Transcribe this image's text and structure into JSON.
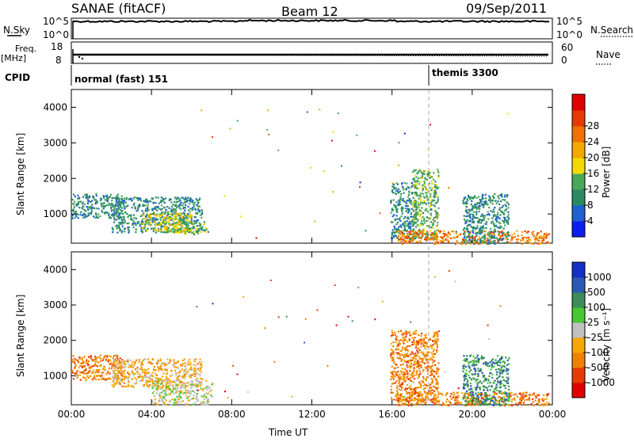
{
  "header": {
    "radar": "SANAE (fitACF)",
    "beam": "Beam 12",
    "date": "09/Sep/2011"
  },
  "labels": {
    "nsky": "N.Sky",
    "nsearch": "N.Search",
    "freq": "Freq.",
    "freq_unit": "[MHz]",
    "nave": "Nave",
    "cpid": "CPID",
    "nsky_top": "10^5",
    "nsky_bot": "10^0",
    "freq_top": "18",
    "freq_bot": "8",
    "nave_top": "60",
    "nave_bot": "0",
    "nsearch_top": "10^5",
    "nsearch_bot": "10^0"
  },
  "cpid_segments": [
    {
      "label": "normal (fast) 151",
      "start_hour": 0.0
    },
    {
      "label": "themis 3300",
      "start_hour": 18.0
    }
  ],
  "colors": {
    "power": [
      "#0a1ef0",
      "#1e5fd2",
      "#2a8a64",
      "#48a858",
      "#f5d800",
      "#f5a800",
      "#f07000",
      "#e83a00",
      "#e00000"
    ],
    "velocity": [
      "#1530c8",
      "#2a5ab4",
      "#3c8c5a",
      "#46c832",
      "#c0c0c0",
      "#f5a800",
      "#f08000",
      "#e83a00",
      "#e00000"
    ]
  },
  "chart_data": [
    {
      "type": "heatmap",
      "panel": "power",
      "ylabel": "Slant Range [km]",
      "colorbar_label": "Power [dB]",
      "xlim": [
        0,
        24
      ],
      "ylim": [
        180,
        4500
      ],
      "yticks": [
        "1000",
        "2000",
        "3000",
        "4000"
      ],
      "colorbar_ticks": [
        "4",
        "8",
        "12",
        "16",
        "20",
        "24",
        "28"
      ],
      "regions": [
        {
          "x0": 0.0,
          "x1": 2.5,
          "y0": 900,
          "y1": 1600,
          "level": 2
        },
        {
          "x0": 2.0,
          "x1": 6.5,
          "y0": 500,
          "y1": 1500,
          "level": 2
        },
        {
          "x0": 3.5,
          "x1": 6.0,
          "y0": 500,
          "y1": 1050,
          "level": 4
        },
        {
          "x0": 5.0,
          "x1": 6.8,
          "y0": 450,
          "y1": 800,
          "level": 3
        },
        {
          "x0": 15.9,
          "x1": 17.2,
          "y0": 300,
          "y1": 1900,
          "level": 2
        },
        {
          "x0": 17.0,
          "x1": 18.3,
          "y0": 300,
          "y1": 2300,
          "level": 3
        },
        {
          "x0": 16.2,
          "x1": 23.8,
          "y0": 180,
          "y1": 550,
          "level": 6
        },
        {
          "x0": 19.5,
          "x1": 21.8,
          "y0": 180,
          "y1": 1600,
          "level": 2
        }
      ]
    },
    {
      "type": "heatmap",
      "panel": "velocity",
      "xlabel": "Time UT",
      "ylabel": "Slant Range [km]",
      "colorbar_label": "Velocity [m s⁻¹]",
      "xlim": [
        0,
        24
      ],
      "ylim": [
        180,
        4500
      ],
      "xticks": [
        "00:00",
        "04:00",
        "08:00",
        "12:00",
        "16:00",
        "20:00",
        "00:00"
      ],
      "yticks": [
        "1000",
        "2000",
        "3000",
        "4000"
      ],
      "colorbar_ticks": [
        "1000",
        "500",
        "100",
        "25",
        "-25",
        "-100",
        "-500",
        "-1000"
      ],
      "regions": [
        {
          "x0": 0.0,
          "x1": 2.5,
          "y0": 900,
          "y1": 1600,
          "level": 6
        },
        {
          "x0": 2.0,
          "x1": 6.5,
          "y0": 700,
          "y1": 1500,
          "level": 5
        },
        {
          "x0": 4.0,
          "x1": 7.0,
          "y0": 200,
          "y1": 900,
          "level": 4
        },
        {
          "x0": 15.9,
          "x1": 18.3,
          "y0": 300,
          "y1": 2300,
          "level": 6
        },
        {
          "x0": 16.2,
          "x1": 23.8,
          "y0": 180,
          "y1": 550,
          "level": 6
        },
        {
          "x0": 19.5,
          "x1": 21.8,
          "y0": 180,
          "y1": 1600,
          "level": 2
        }
      ]
    }
  ]
}
